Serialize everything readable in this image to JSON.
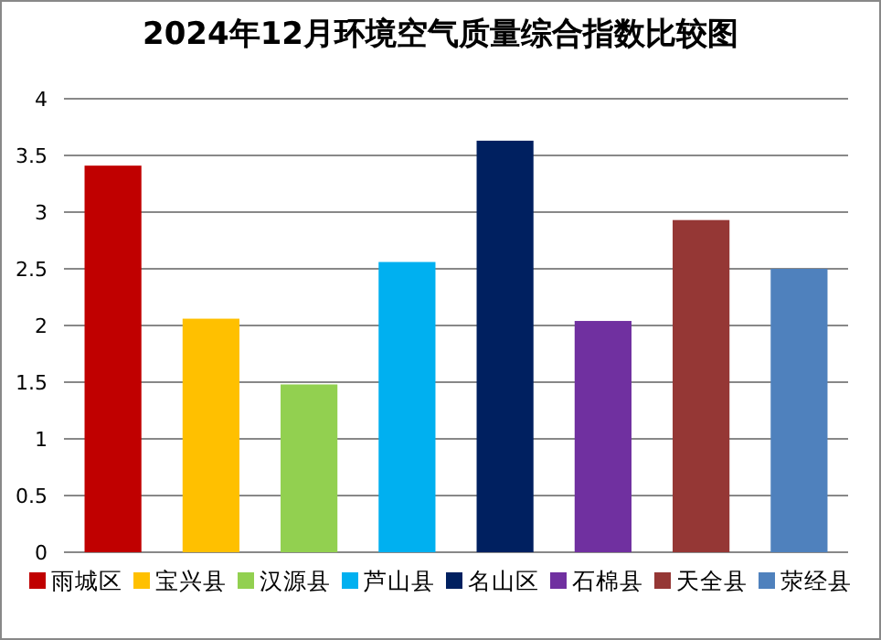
{
  "chart_data": {
    "type": "bar",
    "title": "2024年12月环境空气质量综合指数比较图",
    "categories": [
      null,
      null,
      null,
      null,
      null,
      null,
      null,
      null
    ],
    "series": [
      {
        "name": "雨城区",
        "color": "#c00000",
        "values": [
          3.41,
          null,
          null,
          null,
          null,
          null,
          null,
          null
        ]
      },
      {
        "name": "宝兴县",
        "color": "#ffc000",
        "values": [
          null,
          2.06,
          null,
          null,
          null,
          null,
          null,
          null
        ]
      },
      {
        "name": "汉源县",
        "color": "#92d050",
        "values": [
          null,
          null,
          1.48,
          null,
          null,
          null,
          null,
          null
        ]
      },
      {
        "name": "芦山县",
        "color": "#00b0f0",
        "values": [
          null,
          null,
          null,
          2.56,
          null,
          null,
          null,
          null
        ]
      },
      {
        "name": "名山区",
        "color": "#002060",
        "values": [
          null,
          null,
          null,
          null,
          3.63,
          null,
          null,
          null
        ]
      },
      {
        "name": "石棉县",
        "color": "#7030a0",
        "values": [
          null,
          null,
          null,
          null,
          null,
          2.04,
          null,
          null
        ]
      },
      {
        "name": "天全县",
        "color": "#953735",
        "values": [
          null,
          null,
          null,
          null,
          null,
          null,
          2.93,
          null
        ]
      },
      {
        "name": "荥经县",
        "color": "#4f81bd",
        "values": [
          null,
          null,
          null,
          null,
          null,
          null,
          null,
          2.5
        ]
      }
    ],
    "ylim": [
      0,
      4
    ],
    "yticks": [
      0,
      0.5,
      1,
      1.5,
      2,
      2.5,
      3,
      3.5,
      4
    ],
    "grid": "y",
    "legend": "bottom"
  }
}
